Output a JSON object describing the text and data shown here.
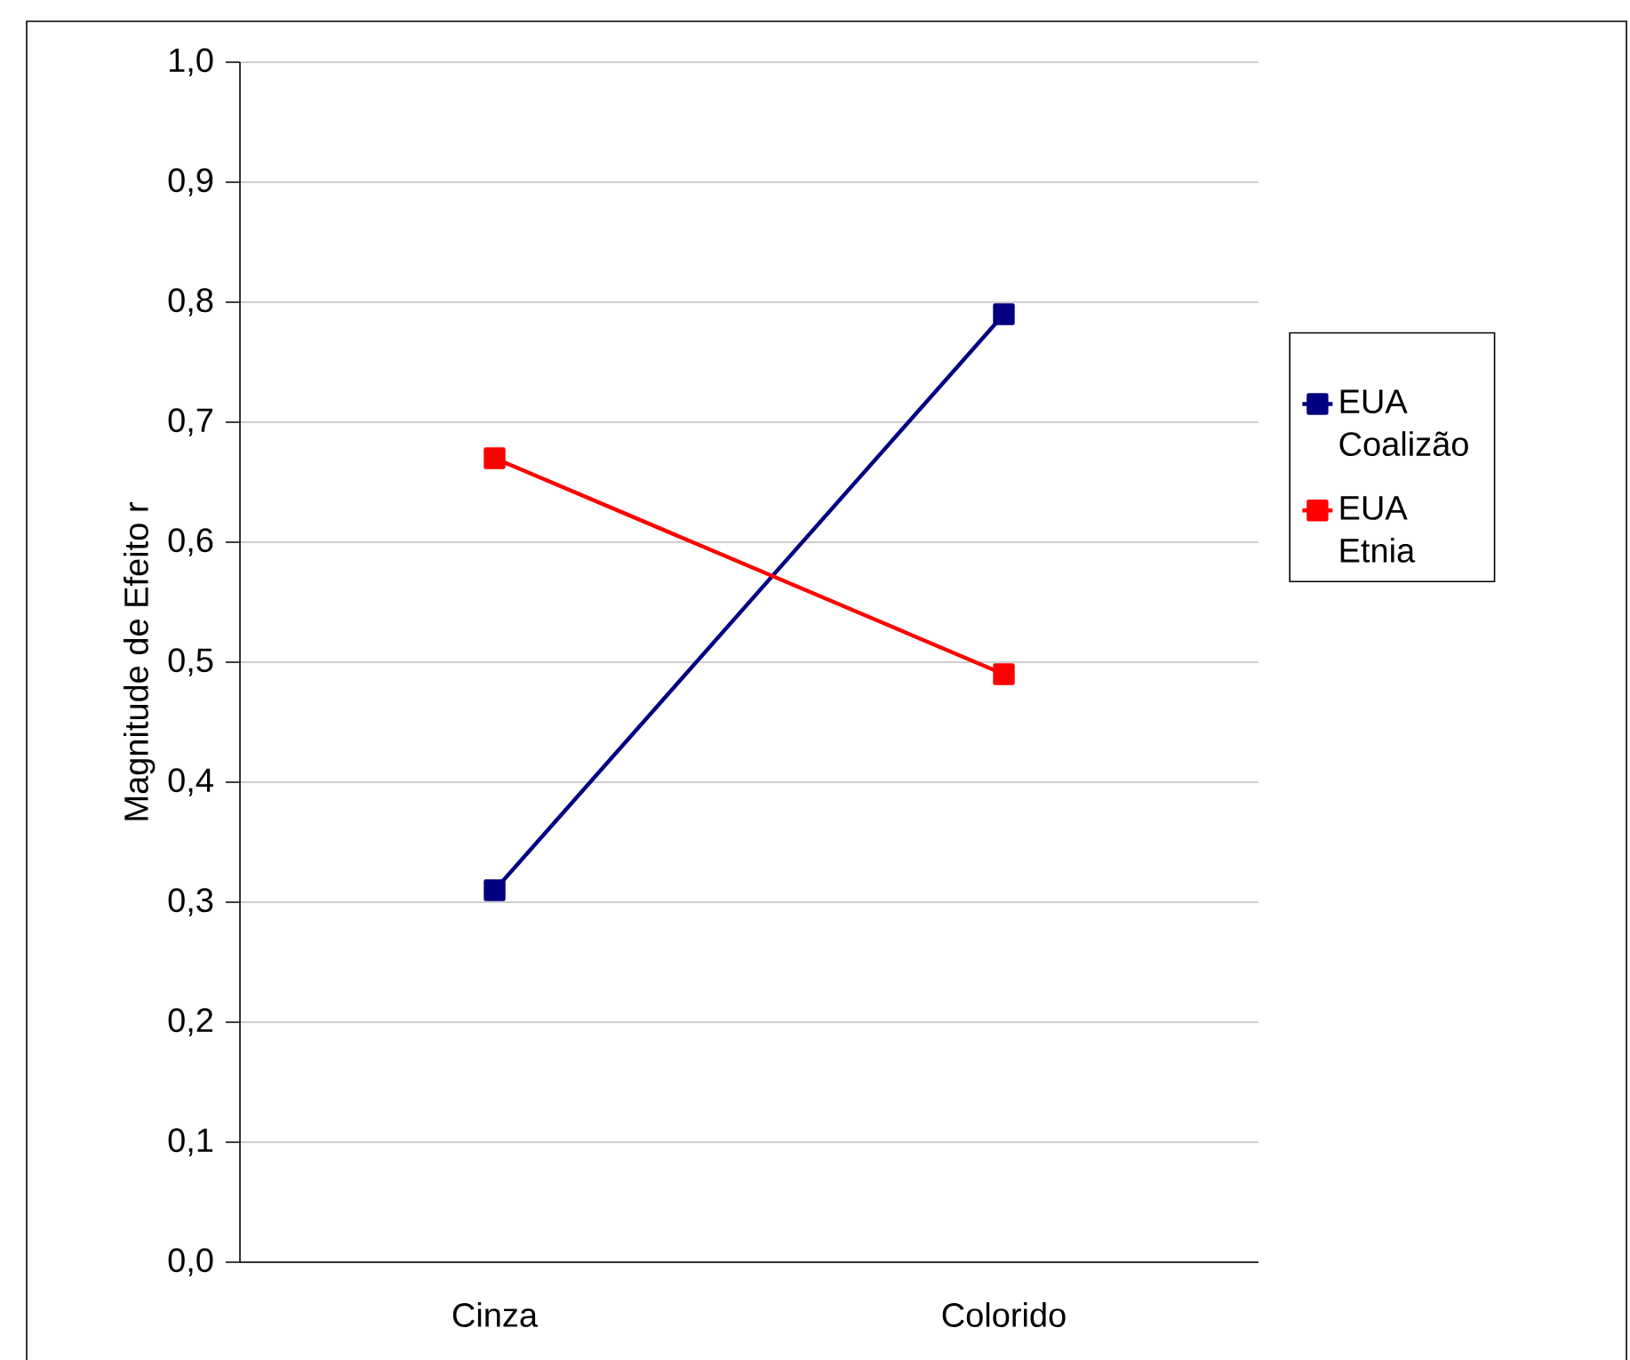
{
  "chart_data": {
    "type": "line",
    "ylabel": "Magnitude de Efeito r",
    "categories": [
      "Cinza",
      "Colorido"
    ],
    "series": [
      {
        "name": "EUA Coalizão",
        "color": "#000080",
        "values": [
          0.31,
          0.79
        ]
      },
      {
        "name": "EUA Etnia",
        "color": "#ff0000",
        "values": [
          0.67,
          0.49
        ]
      }
    ],
    "ylim": [
      0,
      1
    ],
    "yticks": [
      {
        "value": 0,
        "label": "0,0"
      },
      {
        "value": 0.1,
        "label": "0,1"
      },
      {
        "value": 0.2,
        "label": "0,2"
      },
      {
        "value": 0.3,
        "label": "0,3"
      },
      {
        "value": 0.4,
        "label": "0,4"
      },
      {
        "value": 0.5,
        "label": "0,5"
      },
      {
        "value": 0.6,
        "label": "0,6"
      },
      {
        "value": 0.7,
        "label": "0,7"
      },
      {
        "value": 0.8,
        "label": "0,8"
      },
      {
        "value": 0.9,
        "label": "0,9"
      },
      {
        "value": 1,
        "label": "1,0"
      }
    ],
    "grid": "y",
    "legend": "right",
    "marker": "square",
    "line_style": "solid"
  }
}
